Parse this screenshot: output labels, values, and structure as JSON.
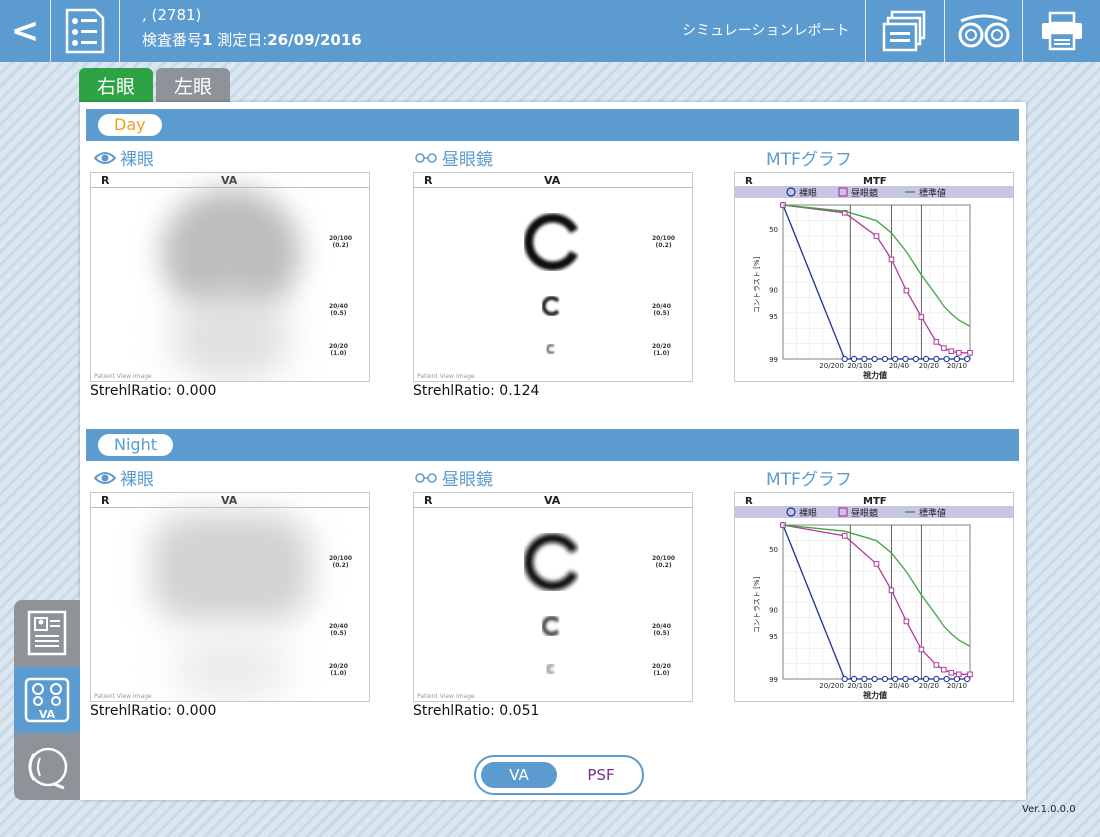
{
  "header": {
    "back_label": "<",
    "patient_line": ", (2781)",
    "exam_prefix": "検査番号",
    "exam_number": "1",
    "date_prefix": " 測定日:",
    "date": "26/09/2016",
    "report_label": "シミュレーションレポート"
  },
  "tabs": {
    "right_eye": "右眼",
    "left_eye": "左眼"
  },
  "sections": [
    {
      "label": "Day",
      "naked_label": "裸眼",
      "glasses_label": "昼眼鏡",
      "mtf_label": "MTFグラフ",
      "naked_strehl": "StrehlRatio: 0.000",
      "glasses_strehl": "StrehlRatio: 0.124"
    },
    {
      "label": "Night",
      "naked_label": "裸眼",
      "glasses_label": "昼眼鏡",
      "mtf_label": "MTFグラフ",
      "naked_strehl": "StrehlRatio: 0.000",
      "glasses_strehl": "StrehlRatio: 0.051"
    }
  ],
  "va_box": {
    "r_label": "R",
    "va_label": "VA",
    "acuity_1": "20/100",
    "acuity_1b": "(0.2)",
    "acuity_2": "20/40",
    "acuity_2b": "(0.5)",
    "acuity_3": "20/20",
    "acuity_3b": "(1.0)",
    "watermark": "Patient View Image"
  },
  "mtf": {
    "r_label": "R",
    "title": "MTF",
    "legend_naked": "裸眼",
    "legend_glasses": "昼眼鏡",
    "legend_standard": "標準値",
    "ylabel": "コントラスト [%]",
    "xlabel": "視力値",
    "y_ticks": [
      "50",
      "90",
      "95",
      "99"
    ],
    "x_ticks": [
      "20/200",
      "20/100",
      "20/40",
      "20/20",
      "20/10"
    ]
  },
  "chart_data": [
    {
      "type": "line",
      "title": "MTF",
      "ylabel": "コントラスト [%]",
      "xlabel": "視力値",
      "x": [
        0,
        0.33,
        0.5,
        0.58,
        0.66,
        0.74,
        0.82,
        0.86,
        0.9,
        0.94,
        1.0
      ],
      "series": [
        {
          "name": "裸眼",
          "color": "#1a2f8f",
          "values": [
            0,
            99,
            99,
            99,
            99,
            99,
            99,
            99,
            99,
            99,
            99
          ]
        },
        {
          "name": "昼眼鏡",
          "color": "#b23b9b",
          "values": [
            0,
            5,
            20,
            35,
            55,
            72,
            88,
            92,
            94,
            95,
            95
          ]
        },
        {
          "name": "標準値",
          "color": "#3aa63a",
          "values": [
            0,
            4,
            10,
            18,
            30,
            45,
            58,
            65,
            70,
            74,
            78
          ]
        }
      ]
    },
    {
      "type": "line",
      "title": "MTF",
      "ylabel": "コントラスト [%]",
      "xlabel": "視力値",
      "x": [
        0,
        0.33,
        0.5,
        0.58,
        0.66,
        0.74,
        0.82,
        0.86,
        0.9,
        0.94,
        1.0
      ],
      "series": [
        {
          "name": "裸眼",
          "color": "#1a2f8f",
          "values": [
            0,
            99,
            99,
            99,
            99,
            99,
            99,
            99,
            99,
            99,
            99
          ]
        },
        {
          "name": "昼眼鏡",
          "color": "#b23b9b",
          "values": [
            0,
            7,
            25,
            42,
            62,
            80,
            90,
            93,
            95,
            96,
            96
          ]
        },
        {
          "name": "標準値",
          "color": "#3aa63a",
          "values": [
            0,
            4,
            10,
            18,
            30,
            45,
            58,
            65,
            70,
            74,
            78
          ]
        }
      ]
    }
  ],
  "toggle": {
    "va": "VA",
    "psf": "PSF"
  },
  "sidebar_va_label": "VA",
  "version": "Ver.1.0.0.0"
}
